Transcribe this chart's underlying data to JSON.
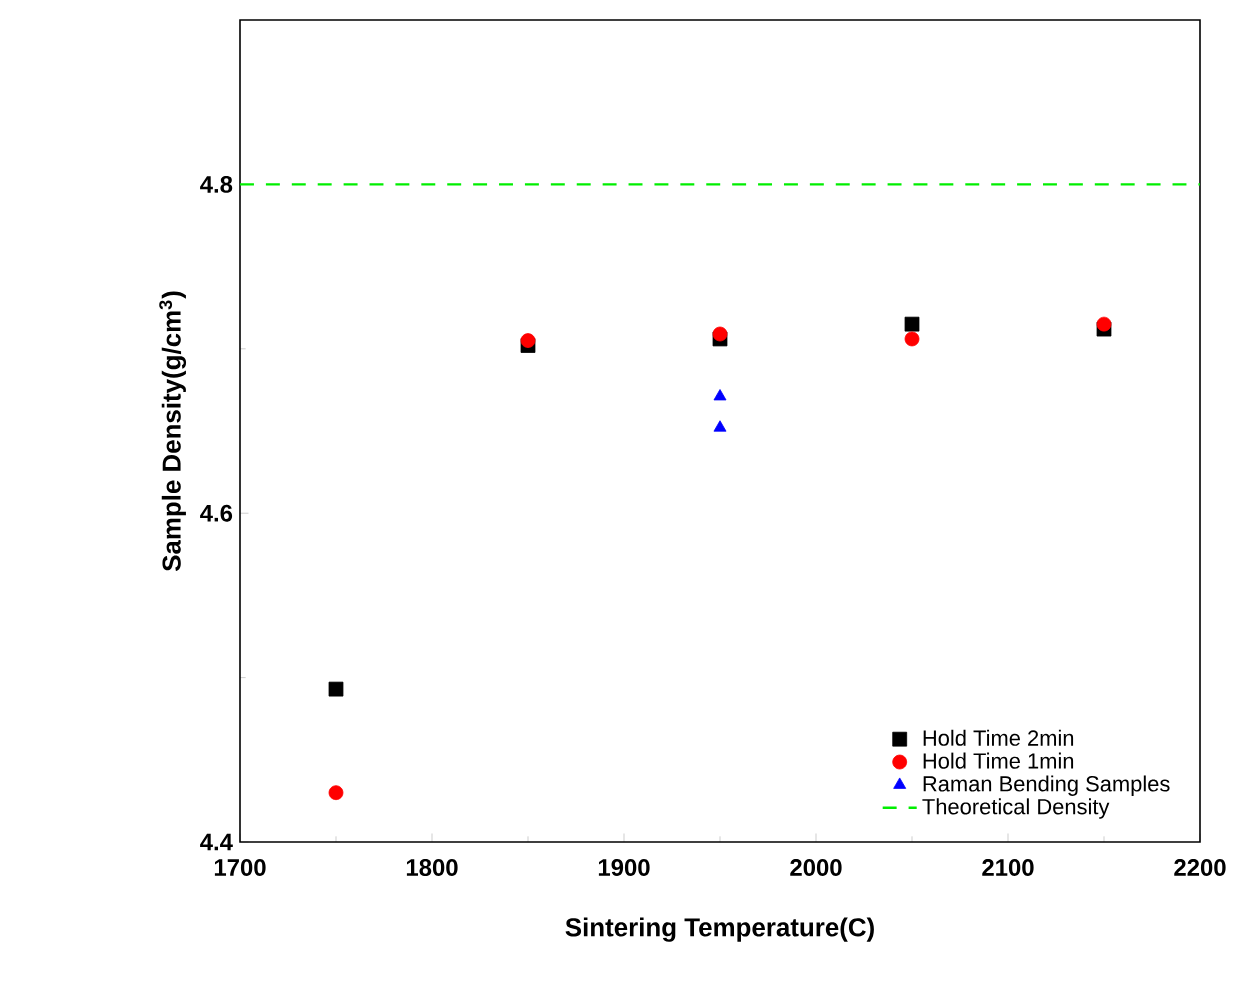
{
  "chart_data": {
    "type": "scatter",
    "xlabel": "Sintering Temperature(C)",
    "ylabel": "Sample Density(g/cm$^{3}$)",
    "xlim": [
      1700,
      2200
    ],
    "xticks": [
      1700,
      1800,
      1900,
      2000,
      2100,
      2200
    ],
    "ylim": [
      4.4,
      4.9
    ],
    "yticks": [
      4.4,
      4.6,
      4.8
    ],
    "series": [
      {
        "name": "Hold Time 2min",
        "color": "#000000",
        "marker": "square",
        "x": [
          1750,
          1850,
          1950,
          2050,
          2150
        ],
        "values": [
          4.493,
          4.702,
          4.706,
          4.715,
          4.712
        ]
      },
      {
        "name": "Hold Time 1min",
        "color": "#ff0000",
        "marker": "circle",
        "x": [
          1750,
          1850,
          1950,
          2050,
          2150
        ],
        "values": [
          4.43,
          4.705,
          4.709,
          4.706,
          4.715
        ]
      },
      {
        "name": "Raman Bending Samples",
        "color": "#0000ff",
        "marker": "triangle",
        "x": [
          1950,
          1950
        ],
        "values": [
          4.671,
          4.652
        ]
      }
    ],
    "ref_lines": [
      {
        "axis": "y",
        "value": 4.8,
        "label": "Theoretical Density",
        "color": "#00ee00",
        "line_style": "dashed"
      }
    ],
    "legend": "bottom right",
    "grid": false
  }
}
